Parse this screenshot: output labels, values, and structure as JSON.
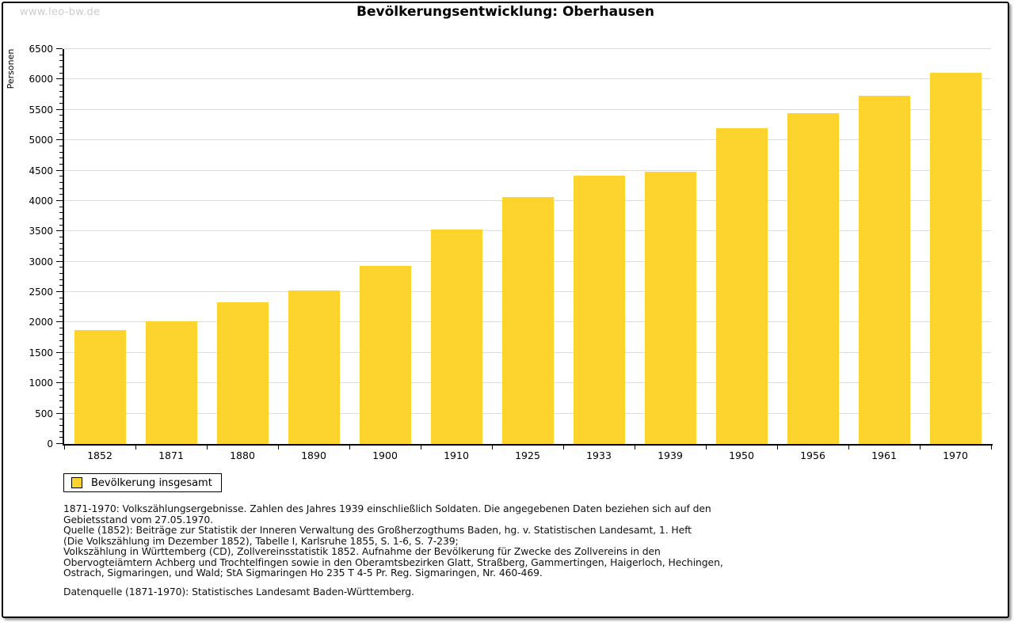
{
  "page": {
    "watermark": "www.leo-bw.de",
    "title": "Bevölkerungsentwicklung: Oberhausen"
  },
  "chart_data": {
    "type": "bar",
    "title": "Bevölkerungsentwicklung: Oberhausen",
    "xlabel": "",
    "ylabel": "Personen",
    "ylim": [
      0,
      6500
    ],
    "ytick_step": 500,
    "yminor_tick_step": 100,
    "grid": true,
    "legend_position": "bottom-left",
    "bar_color": "#FCD42D",
    "categories": [
      "1852",
      "1871",
      "1880",
      "1890",
      "1900",
      "1910",
      "1925",
      "1933",
      "1939",
      "1950",
      "1956",
      "1961",
      "1970"
    ],
    "series": [
      {
        "name": "Bevölkerung insgesamt",
        "values": [
          1880,
          2020,
          2330,
          2530,
          2930,
          3530,
          4060,
          4410,
          4480,
          5200,
          5450,
          5730,
          6110
        ]
      }
    ]
  },
  "legend": {
    "label": "Bevölkerung insgesamt",
    "swatch_color": "#FCD42D"
  },
  "footnotes": {
    "lines": [
      "1871-1970: Volkszählungsergebnisse. Zahlen des Jahres 1939 einschließlich Soldaten. Die angegebenen Daten beziehen sich auf den",
      "Gebietsstand vom 27.05.1970.",
      "Quelle (1852): Beiträge zur Statistik der Inneren Verwaltung des Großherzogthums Baden, hg. v. Statistischen Landesamt, 1. Heft",
      "(Die Volkszählung im Dezember 1852), Tabelle I, Karlsruhe 1855, S. 1-6, S. 7-239;",
      "Volkszählung in Württemberg (CD), Zollvereinsstatistik 1852. Aufnahme der Bevölkerung für Zwecke des Zollvereins in den",
      "Obervogteiämtern Achberg und Trochtelfingen sowie in den Oberamtsbezirken Glatt, Straßberg, Gammertingen, Haigerloch, Hechingen,",
      "Ostrach, Sigmaringen, und Wald; StA Sigmaringen Ho 235 T 4-5 Pr. Reg. Sigmaringen, Nr. 460-469."
    ],
    "datasource": "Datenquelle (1871-1970): Statistisches Landesamt Baden-Württemberg."
  }
}
